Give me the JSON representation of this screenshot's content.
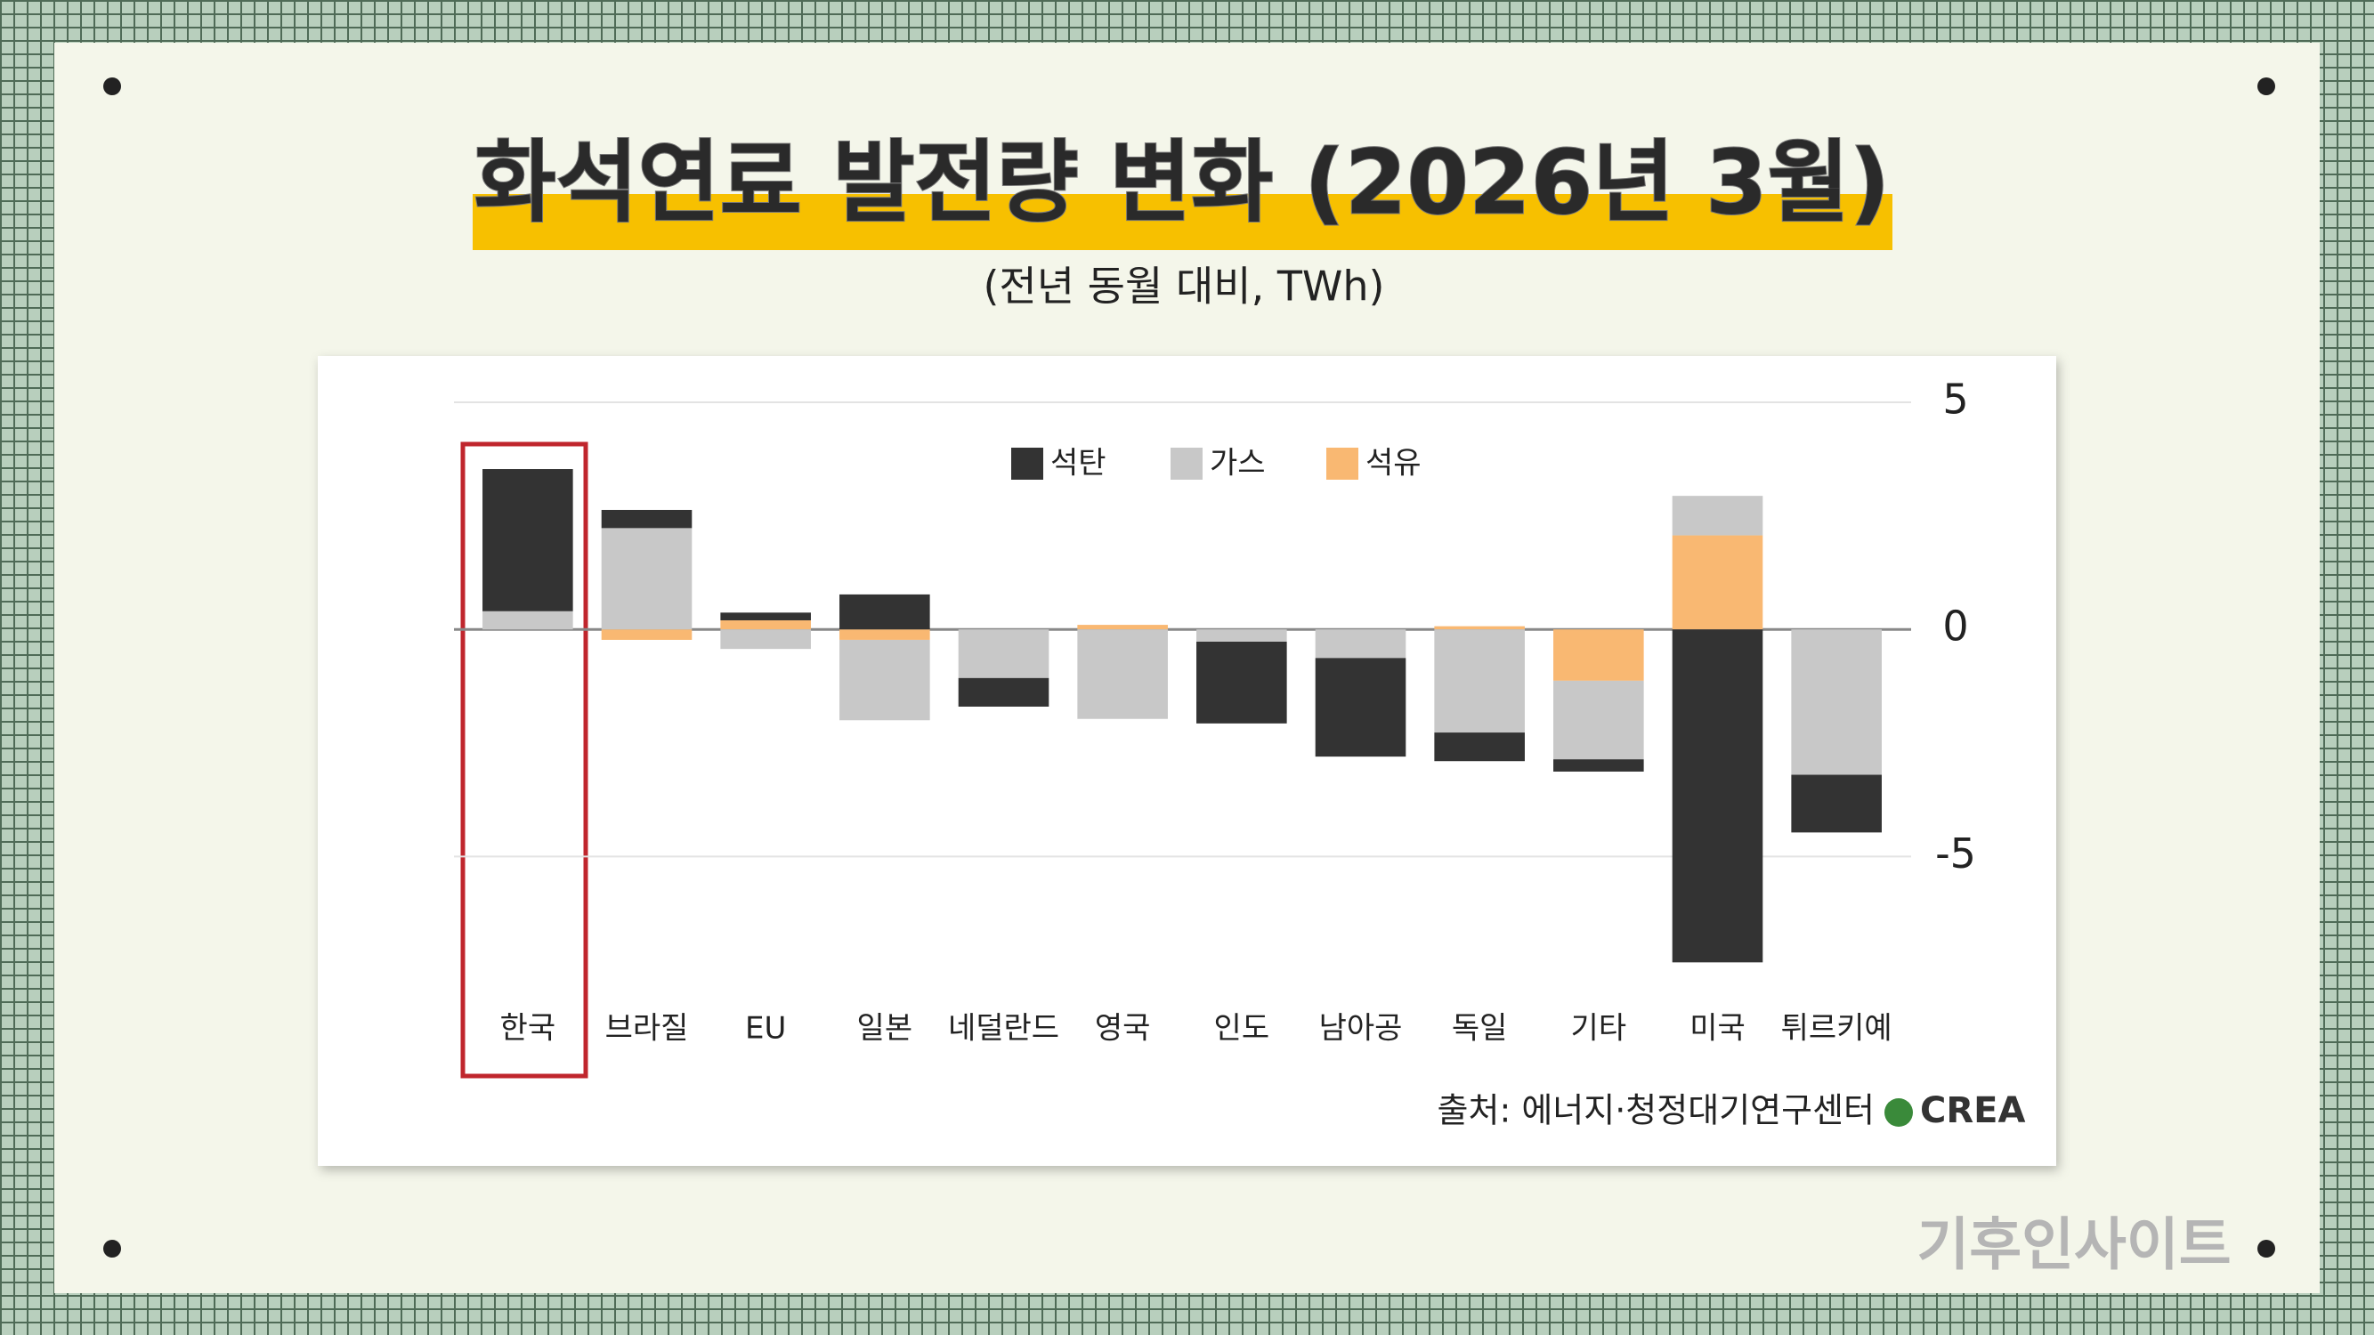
{
  "title": "화석연료 발전량 변화 (2026년 3월)",
  "subtitle": "(전년 동월 대비, TWh)",
  "source": "출처: 에너지·청정대기연구센터",
  "logo": "CREA",
  "watermark": "기후인사이트",
  "chart_data": {
    "type": "bar",
    "stacked": true,
    "categories": [
      "한국",
      "브라질",
      "EU",
      "일본",
      "네덜란드",
      "영국",
      "인도",
      "남아공",
      "독일",
      "기타",
      "미국",
      "튀르키예"
    ],
    "series": [
      {
        "name": "석탄",
        "color": "#333333",
        "values": [
          3.13,
          0.4,
          0.17,
          0.77,
          -0.63,
          0,
          -1.8,
          -2.17,
          -0.63,
          -0.27,
          -7.33,
          -1.27
        ]
      },
      {
        "name": "가스",
        "color": "#c8c8c8",
        "values": [
          0.4,
          2.23,
          -0.43,
          -1.77,
          -1.07,
          -1.97,
          -0.27,
          -0.63,
          -2.27,
          -1.73,
          0.87,
          -3.2
        ]
      },
      {
        "name": "석유",
        "color": "#f9b872",
        "values": [
          0,
          -0.23,
          0.2,
          -0.23,
          0,
          0.1,
          0,
          0,
          0.07,
          -1.13,
          2.07,
          0
        ]
      }
    ],
    "ylim": [
      -7.5,
      5
    ],
    "yticks": [
      5,
      0,
      -5
    ],
    "grid": true,
    "legend": "top"
  }
}
